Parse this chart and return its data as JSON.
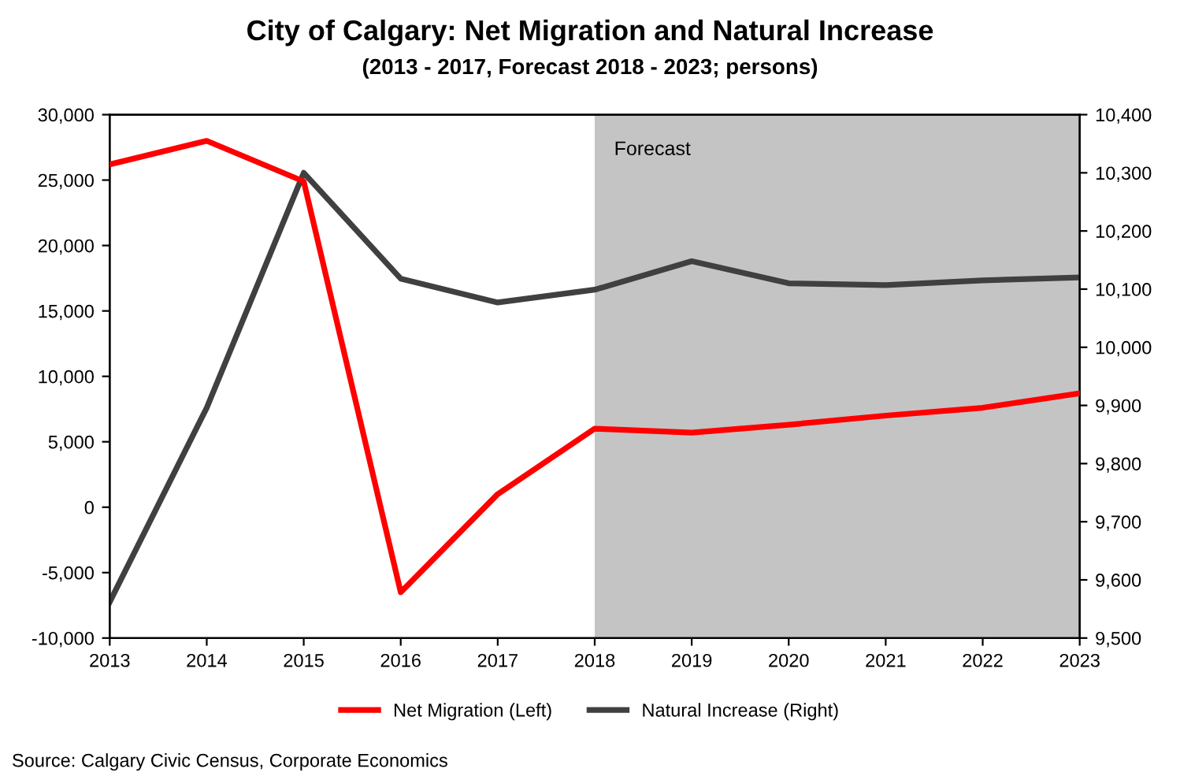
{
  "chart_data": {
    "type": "line",
    "title": "City of Calgary: Net Migration and Natural Increase",
    "subtitle": "(2013 - 2017, Forecast 2018 - 2023; persons)",
    "x": [
      2013,
      2014,
      2015,
      2016,
      2017,
      2018,
      2019,
      2020,
      2021,
      2022,
      2023
    ],
    "series": [
      {
        "name": "Net Migration (Left)",
        "color": "#ff0000",
        "values": [
          26200,
          28000,
          24900,
          -6500,
          1000,
          6000,
          5700,
          6300,
          7000,
          7600,
          8700
        ]
      },
      {
        "name": "Natural Increase (Right)",
        "color": "#404040",
        "axis": "y2",
        "values": [
          9562,
          9896,
          10300,
          10118,
          10077,
          10099,
          10148,
          10110,
          10107,
          10115,
          10120
        ]
      }
    ],
    "xlim": [
      2013,
      2023
    ],
    "xticks": [
      2013,
      2014,
      2015,
      2016,
      2017,
      2018,
      2019,
      2020,
      2021,
      2022,
      2023
    ],
    "ylim": [
      -10000,
      30000
    ],
    "yticks": [
      {
        "value": -10000,
        "label": "-10,000"
      },
      {
        "value": -5000,
        "label": "-5,000"
      },
      0,
      {
        "value": 5000,
        "label": "5,000"
      },
      {
        "value": 10000,
        "label": "10,000"
      },
      {
        "value": 15000,
        "label": "15,000"
      },
      {
        "value": 20000,
        "label": "20,000"
      },
      {
        "value": 25000,
        "label": "25,000"
      },
      {
        "value": 30000,
        "label": "30,000"
      }
    ],
    "y2lim": [
      9500,
      10400
    ],
    "y2ticks": [
      {
        "value": 9500,
        "label": "9,500"
      },
      {
        "value": 9600,
        "label": "9,600"
      },
      {
        "value": 9700,
        "label": "9,700"
      },
      {
        "value": 9800,
        "label": "9,800"
      },
      {
        "value": 9900,
        "label": "9,900"
      },
      {
        "value": 10000,
        "label": "10,000"
      },
      {
        "value": 10100,
        "label": "10,100"
      },
      {
        "value": 10200,
        "label": "10,200"
      },
      {
        "value": 10300,
        "label": "10,300"
      },
      {
        "value": 10400,
        "label": "10,400"
      }
    ],
    "bands": [
      {
        "axis": "x",
        "from": 2018,
        "to": 2023,
        "label": "Forecast",
        "color": "#c4c4c4"
      }
    ],
    "grid": false,
    "legend": "bottom",
    "line_style": "solid",
    "marker": "none",
    "annotations": [
      "Source: Calgary Civic Census, Corporate Economics"
    ]
  }
}
